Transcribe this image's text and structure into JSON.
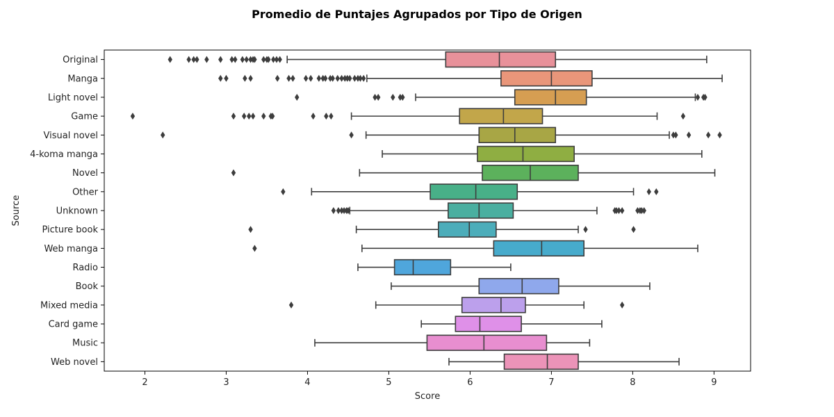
{
  "chart_data": {
    "type": "boxplot",
    "orientation": "horizontal",
    "title": "Promedio de Puntajes Agrupados por Tipo de Origen",
    "xlabel": "Score",
    "ylabel": "Source",
    "xlim": [
      1.5,
      9.45
    ],
    "xticks": [
      2,
      3,
      4,
      5,
      6,
      7,
      8,
      9
    ],
    "grid": false,
    "categories": [
      "Original",
      "Manga",
      "Light novel",
      "Game",
      "Visual novel",
      "4-koma manga",
      "Novel",
      "Other",
      "Unknown",
      "Picture book",
      "Web manga",
      "Radio",
      "Book",
      "Mixed media",
      "Card game",
      "Music",
      "Web novel"
    ],
    "boxes": [
      {
        "category": "Original",
        "whisker_low": 3.75,
        "q1": 5.7,
        "median": 6.36,
        "q3": 7.05,
        "whisker_high": 8.91,
        "outliers": [
          2.31,
          2.54,
          2.6,
          2.64,
          2.76,
          2.93,
          3.07,
          3.11,
          3.2,
          3.25,
          3.3,
          3.33,
          3.35,
          3.46,
          3.5,
          3.52,
          3.58,
          3.62,
          3.66
        ],
        "color": "#e8919a"
      },
      {
        "category": "Manga",
        "whisker_low": 4.73,
        "q1": 6.38,
        "median": 7.0,
        "q3": 7.5,
        "whisker_high": 9.1,
        "outliers": [
          2.93,
          3.0,
          3.23,
          3.3,
          3.63,
          3.77,
          3.82,
          3.98,
          4.04,
          4.14,
          4.19,
          4.22,
          4.28,
          4.31,
          4.37,
          4.42,
          4.46,
          4.49,
          4.52,
          4.58,
          4.62,
          4.65,
          4.69
        ],
        "color": "#e9967a"
      },
      {
        "category": "Light novel",
        "whisker_low": 5.33,
        "q1": 6.55,
        "median": 7.05,
        "q3": 7.43,
        "whisker_high": 8.77,
        "outliers": [
          3.87,
          4.83,
          4.87,
          5.05,
          5.14,
          5.17,
          8.8,
          8.87,
          8.89
        ],
        "color": "#d69e52"
      },
      {
        "category": "Game",
        "whisker_low": 4.54,
        "q1": 5.87,
        "median": 6.41,
        "q3": 6.89,
        "whisker_high": 8.3,
        "outliers": [
          1.85,
          3.09,
          3.22,
          3.28,
          3.33,
          3.46,
          3.55,
          3.57,
          4.07,
          4.23,
          4.29,
          8.62
        ],
        "color": "#c2a64a"
      },
      {
        "category": "Visual novel",
        "whisker_low": 4.72,
        "q1": 6.11,
        "median": 6.55,
        "q3": 7.05,
        "whisker_high": 8.45,
        "outliers": [
          2.22,
          4.54,
          8.5,
          8.53,
          8.69,
          8.93,
          9.07
        ],
        "color": "#a8a645"
      },
      {
        "category": "4-koma manga",
        "whisker_low": 4.92,
        "q1": 6.09,
        "median": 6.65,
        "q3": 7.28,
        "whisker_high": 8.85,
        "outliers": [],
        "color": "#8fae42"
      },
      {
        "category": "Novel",
        "whisker_low": 4.64,
        "q1": 6.15,
        "median": 6.74,
        "q3": 7.33,
        "whisker_high": 9.01,
        "outliers": [
          3.09
        ],
        "color": "#5cb15c"
      },
      {
        "category": "Other",
        "whisker_low": 4.05,
        "q1": 5.51,
        "median": 6.07,
        "q3": 6.58,
        "whisker_high": 8.01,
        "outliers": [
          3.7,
          8.2,
          8.29
        ],
        "color": "#48b088"
      },
      {
        "category": "Unknown",
        "whisker_low": 4.52,
        "q1": 5.73,
        "median": 6.11,
        "q3": 6.53,
        "whisker_high": 7.56,
        "outliers": [
          4.32,
          4.38,
          4.42,
          4.45,
          4.48,
          4.5,
          7.78,
          7.8,
          7.83,
          7.87,
          8.06,
          8.09,
          8.11,
          8.14
        ],
        "color": "#4aafa0"
      },
      {
        "category": "Picture book",
        "whisker_low": 4.6,
        "q1": 5.61,
        "median": 5.99,
        "q3": 6.32,
        "whisker_high": 7.33,
        "outliers": [
          3.3,
          7.42,
          8.01
        ],
        "color": "#4cadba"
      },
      {
        "category": "Web manga",
        "whisker_low": 4.67,
        "q1": 6.29,
        "median": 6.88,
        "q3": 7.4,
        "whisker_high": 8.8,
        "outliers": [
          3.35
        ],
        "color": "#47abcc"
      },
      {
        "category": "Radio",
        "whisker_low": 4.62,
        "q1": 5.07,
        "median": 5.3,
        "q3": 5.76,
        "whisker_high": 6.5,
        "outliers": [],
        "color": "#4fa6dc"
      },
      {
        "category": "Book",
        "whisker_low": 5.03,
        "q1": 6.11,
        "median": 6.64,
        "q3": 7.09,
        "whisker_high": 8.21,
        "outliers": [],
        "color": "#8fa8ec"
      },
      {
        "category": "Mixed media",
        "whisker_low": 4.84,
        "q1": 5.9,
        "median": 6.38,
        "q3": 6.68,
        "whisker_high": 7.4,
        "outliers": [
          3.8,
          7.87
        ],
        "color": "#bca0ec"
      },
      {
        "category": "Card game",
        "whisker_low": 5.4,
        "q1": 5.82,
        "median": 6.12,
        "q3": 6.63,
        "whisker_high": 7.62,
        "outliers": [],
        "color": "#df90e8"
      },
      {
        "category": "Music",
        "whisker_low": 4.09,
        "q1": 5.47,
        "median": 6.17,
        "q3": 6.94,
        "whisker_high": 7.47,
        "outliers": [],
        "color": "#e88ed0"
      },
      {
        "category": "Web novel",
        "whisker_low": 5.74,
        "q1": 6.42,
        "median": 6.95,
        "q3": 7.33,
        "whisker_high": 8.57,
        "outliers": [],
        "color": "#ec93b8"
      }
    ]
  }
}
